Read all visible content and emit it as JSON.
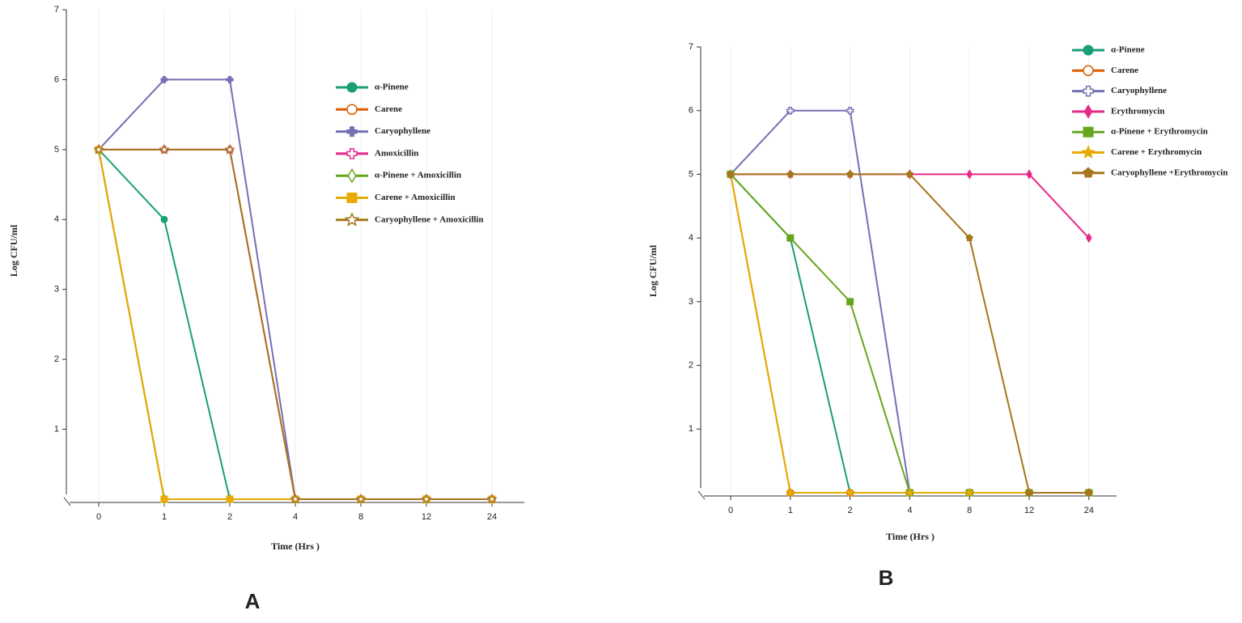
{
  "chart_data": [
    {
      "type": "line",
      "panel_label": "A",
      "y_label": "Log CFU/ml",
      "x_label": "Time (Hrs )",
      "categories": [
        "0",
        "1",
        "2",
        "4",
        "8",
        "12",
        "24"
      ],
      "ylim": [
        0,
        7
      ],
      "yticks": [
        1,
        2,
        3,
        4,
        5,
        6,
        7
      ],
      "series": [
        {
          "name": "α-Pinene",
          "color": "#1b9e77",
          "marker": "circle",
          "values": [
            5,
            4,
            0,
            0,
            0,
            0,
            0
          ]
        },
        {
          "name": "Carene",
          "color": "#d95f02",
          "marker": "open-circle",
          "values": [
            5,
            0,
            0,
            0,
            0,
            0,
            0
          ]
        },
        {
          "name": "Caryophyllene",
          "color": "#7570b3",
          "marker": "cross",
          "values": [
            5,
            6,
            6,
            0,
            0,
            0,
            0
          ]
        },
        {
          "name": "Amoxicillin",
          "color": "#e7298a",
          "marker": "open-cross",
          "values": [
            5,
            5,
            5,
            0,
            0,
            0,
            0
          ]
        },
        {
          "name": "α-Pinene + Amoxicillin",
          "color": "#66a61e",
          "marker": "open-diamond",
          "values": [
            5,
            0,
            0,
            0,
            0,
            0,
            0
          ]
        },
        {
          "name": "Carene + Amoxicillin",
          "color": "#e6ab02",
          "marker": "square",
          "values": [
            5,
            0,
            0,
            0,
            0,
            0,
            0
          ]
        },
        {
          "name": "Caryophyllene + Amoxicillin",
          "color": "#a6761d",
          "marker": "open-star",
          "values": [
            5,
            5,
            5,
            0,
            0,
            0,
            0
          ]
        }
      ]
    },
    {
      "type": "line",
      "panel_label": "B",
      "y_label": "Log CFU/ml",
      "x_label": "Time (Hrs )",
      "categories": [
        "0",
        "1",
        "2",
        "4",
        "8",
        "12",
        "24"
      ],
      "ylim": [
        0,
        7
      ],
      "yticks": [
        1,
        2,
        3,
        4,
        5,
        6,
        7
      ],
      "series": [
        {
          "name": "α-Pinene",
          "color": "#1b9e77",
          "marker": "circle",
          "values": [
            5,
            4,
            0,
            0,
            0,
            0,
            0
          ]
        },
        {
          "name": "Carene",
          "color": "#d95f02",
          "marker": "open-circle",
          "values": [
            5,
            0,
            0,
            0,
            0,
            0,
            0
          ]
        },
        {
          "name": "Caryophyllene",
          "color": "#7570b3",
          "marker": "open-cross",
          "values": [
            5,
            6,
            6,
            0,
            0,
            0,
            0
          ]
        },
        {
          "name": "Erythromycin",
          "color": "#e7298a",
          "marker": "diamond",
          "values": [
            5,
            5,
            5,
            5,
            5,
            5,
            4
          ]
        },
        {
          "name": "α-Pinene + Erythromycin",
          "color": "#66a61e",
          "marker": "square",
          "values": [
            5,
            4,
            3,
            0,
            0,
            0,
            0
          ]
        },
        {
          "name": "Carene + Erythromycin",
          "color": "#e6ab02",
          "marker": "star",
          "values": [
            5,
            0,
            0,
            0,
            0,
            0,
            0
          ]
        },
        {
          "name": "Caryophyllene +Erythromycin",
          "color": "#a6761d",
          "marker": "pentagon",
          "values": [
            5,
            5,
            5,
            5,
            4,
            0,
            0
          ]
        }
      ]
    }
  ]
}
